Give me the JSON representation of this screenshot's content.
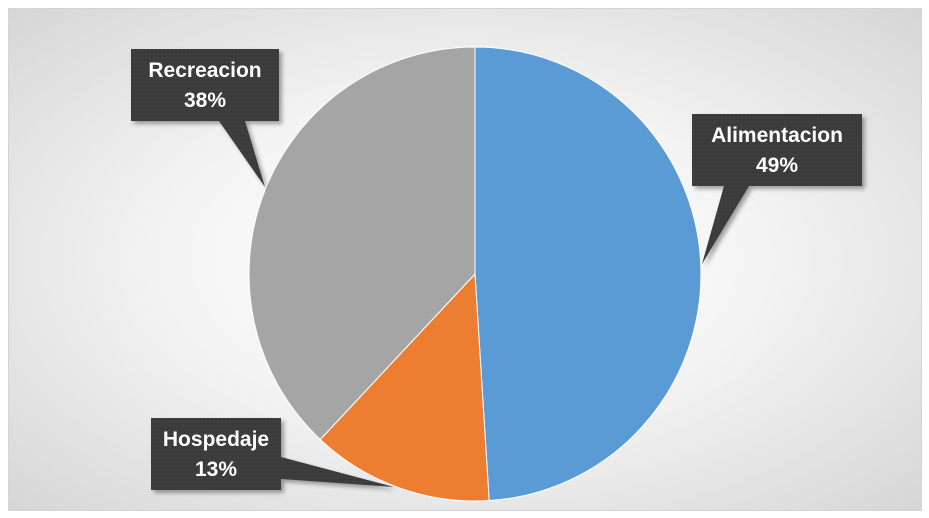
{
  "colors": {
    "Alimentacion": "#5B9BD5",
    "Hospedaje": "#ED7D31",
    "Recreacion": "#A5A5A5",
    "callout_bg": "#3a3a3a",
    "callout_text": "#ffffff"
  },
  "chart_data": {
    "type": "pie",
    "categories": [
      "Alimentacion",
      "Hospedaje",
      "Recreacion"
    ],
    "values": [
      49,
      13,
      38
    ],
    "labels": [
      {
        "name": "Alimentacion",
        "percent": "49%"
      },
      {
        "name": "Hospedaje",
        "percent": "13%"
      },
      {
        "name": "Recreacion",
        "percent": "38%"
      }
    ],
    "start_angle": "12 o'clock",
    "direction": "clockwise",
    "title": "",
    "legend": "none"
  }
}
